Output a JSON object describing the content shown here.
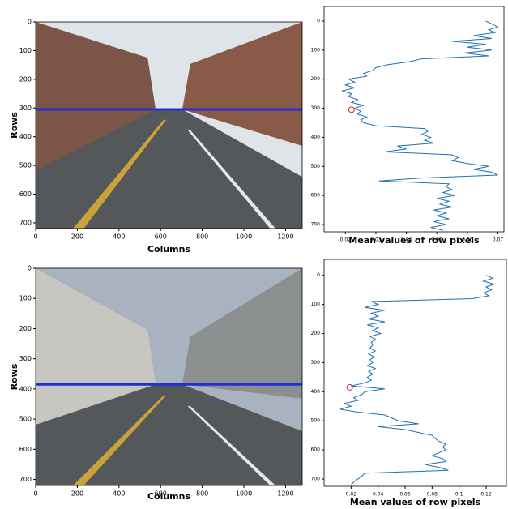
{
  "chart_data": [
    {
      "type": "image",
      "xlabel": "Columns",
      "ylabel": "Rows",
      "xlim": [
        0,
        1280
      ],
      "ylim": [
        720,
        0
      ],
      "xticks": [
        0,
        200,
        400,
        600,
        800,
        1000,
        1200
      ],
      "yticks": [
        0,
        100,
        200,
        300,
        400,
        500,
        600,
        700
      ],
      "horizon_row": 305,
      "horizon_color": "#1f2fd6"
    },
    {
      "type": "line",
      "xlabel": "Mean values of row pixels",
      "xlim": [
        0.013,
        0.072
      ],
      "ylim": [
        725,
        -50
      ],
      "xticks": [
        0.02,
        0.03,
        0.04,
        0.05,
        0.06,
        0.07
      ],
      "yticks": [
        0,
        100,
        200,
        300,
        400,
        500,
        600,
        700
      ],
      "rows": [
        0,
        10,
        20,
        30,
        40,
        50,
        60,
        70,
        80,
        90,
        100,
        110,
        120,
        130,
        140,
        150,
        160,
        170,
        180,
        190,
        200,
        210,
        220,
        230,
        240,
        250,
        260,
        270,
        280,
        290,
        300,
        310,
        320,
        330,
        340,
        350,
        360,
        370,
        380,
        390,
        400,
        410,
        420,
        430,
        440,
        450,
        460,
        470,
        480,
        490,
        500,
        510,
        520,
        530,
        540,
        550,
        560,
        570,
        580,
        590,
        600,
        610,
        620,
        630,
        640,
        650,
        660,
        670,
        680,
        690,
        700,
        710,
        720
      ],
      "series": [
        {
          "color": "#1f6fb4",
          "values": [
            0.066,
            0.068,
            0.07,
            0.067,
            0.069,
            0.062,
            0.068,
            0.055,
            0.066,
            0.06,
            0.068,
            0.059,
            0.067,
            0.045,
            0.041,
            0.034,
            0.03,
            0.029,
            0.026,
            0.027,
            0.021,
            0.023,
            0.02,
            0.023,
            0.019,
            0.022,
            0.021,
            0.024,
            0.022,
            0.026,
            0.023,
            0.025,
            0.024,
            0.027,
            0.025,
            0.026,
            0.03,
            0.046,
            0.047,
            0.045,
            0.048,
            0.046,
            0.049,
            0.037,
            0.04,
            0.033,
            0.055,
            0.057,
            0.055,
            0.06,
            0.067,
            0.062,
            0.068,
            0.07,
            0.045,
            0.031,
            0.054,
            0.053,
            0.055,
            0.052,
            0.056,
            0.05,
            0.054,
            0.051,
            0.055,
            0.049,
            0.053,
            0.05,
            0.054,
            0.049,
            0.053,
            0.048,
            0.052
          ]
        }
      ],
      "marker": {
        "row": 305,
        "value": 0.022,
        "color": "#d62728"
      }
    },
    {
      "type": "image",
      "xlabel": "Columns",
      "ylabel": "Rows",
      "xlim": [
        0,
        1280
      ],
      "ylim": [
        720,
        0
      ],
      "xticks": [
        0,
        200,
        400,
        600,
        800,
        1000,
        1200
      ],
      "yticks": [
        0,
        100,
        200,
        300,
        400,
        500,
        600,
        700
      ],
      "horizon_row": 385,
      "horizon_color": "#1f2fd6"
    },
    {
      "type": "line",
      "xlabel": "Mean values of row pixels",
      "xlim": [
        0.0,
        0.135
      ],
      "ylim": [
        725,
        -55
      ],
      "xticks": [
        0.02,
        0.04,
        0.06,
        0.08,
        0.1,
        0.12
      ],
      "yticks": [
        0,
        100,
        200,
        300,
        400,
        500,
        600,
        700
      ],
      "rows": [
        0,
        10,
        20,
        30,
        40,
        50,
        60,
        70,
        80,
        90,
        100,
        110,
        120,
        130,
        140,
        150,
        160,
        170,
        180,
        190,
        200,
        210,
        220,
        230,
        240,
        250,
        260,
        270,
        280,
        290,
        300,
        310,
        320,
        330,
        340,
        350,
        360,
        370,
        380,
        390,
        400,
        410,
        420,
        430,
        440,
        450,
        460,
        470,
        480,
        490,
        500,
        510,
        520,
        530,
        540,
        550,
        560,
        570,
        580,
        590,
        600,
        610,
        620,
        630,
        640,
        650,
        660,
        670,
        680,
        690,
        700,
        710,
        720
      ],
      "series": [
        {
          "color": "#1f6fb4",
          "values": [
            0.12,
            0.125,
            0.118,
            0.126,
            0.12,
            0.124,
            0.118,
            0.122,
            0.11,
            0.035,
            0.04,
            0.03,
            0.045,
            0.035,
            0.04,
            0.033,
            0.045,
            0.032,
            0.04,
            0.036,
            0.042,
            0.034,
            0.038,
            0.035,
            0.036,
            0.034,
            0.038,
            0.033,
            0.037,
            0.034,
            0.036,
            0.032,
            0.038,
            0.033,
            0.036,
            0.032,
            0.035,
            0.03,
            0.02,
            0.045,
            0.03,
            0.028,
            0.022,
            0.025,
            0.015,
            0.02,
            0.012,
            0.025,
            0.045,
            0.05,
            0.055,
            0.07,
            0.04,
            0.06,
            0.07,
            0.08,
            0.082,
            0.085,
            0.09,
            0.088,
            0.09,
            0.085,
            0.08,
            0.088,
            0.09,
            0.075,
            0.085,
            0.092,
            0.03,
            0.028,
            0.025,
            0.022,
            0.02
          ]
        }
      ],
      "marker": {
        "row": 385,
        "value": 0.019,
        "color": "#d62728"
      }
    }
  ]
}
